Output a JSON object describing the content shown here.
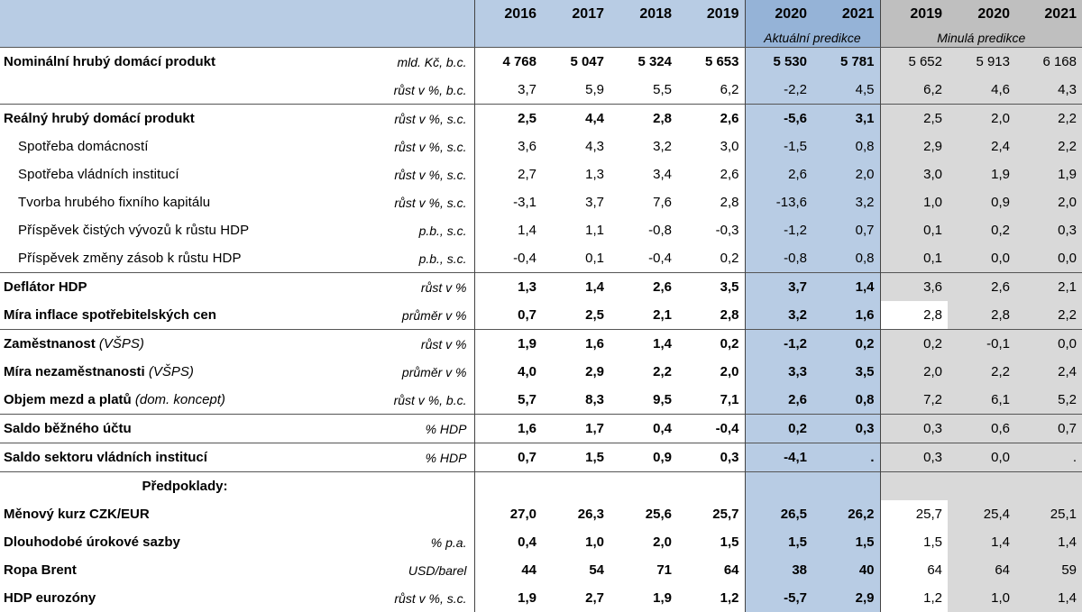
{
  "header": {
    "years": [
      "2016",
      "2017",
      "2018",
      "2019",
      "2020",
      "2021",
      "2019",
      "2020",
      "2021"
    ],
    "current_label": "Aktuální predikce",
    "previous_label": "Minulá predikce"
  },
  "rows": [
    {
      "label": "Nominální hrubý domácí produkt",
      "unit": "mld. Kč, b.c.",
      "v": [
        "4 768",
        "5 047",
        "5 324",
        "5 653",
        "5 530",
        "5 781",
        "5 652",
        "5 913",
        "6 168"
      ]
    },
    {
      "label": "",
      "unit": "růst v %, b.c.",
      "v": [
        "3,7",
        "5,9",
        "5,5",
        "6,2",
        "-2,2",
        "4,5",
        "6,2",
        "4,6",
        "4,3"
      ]
    },
    {
      "label": "Reálný hrubý domácí produkt",
      "unit": "růst v %, s.c.",
      "v": [
        "2,5",
        "4,4",
        "2,8",
        "2,6",
        "-5,6",
        "3,1",
        "2,5",
        "2,0",
        "2,2"
      ]
    },
    {
      "label": "Spotřeba domácností",
      "unit": "růst v %, s.c.",
      "v": [
        "3,6",
        "4,3",
        "3,2",
        "3,0",
        "-1,5",
        "0,8",
        "2,9",
        "2,4",
        "2,2"
      ]
    },
    {
      "label": "Spotřeba vládních institucí",
      "unit": "růst v %, s.c.",
      "v": [
        "2,7",
        "1,3",
        "3,4",
        "2,6",
        "2,6",
        "2,0",
        "3,0",
        "1,9",
        "1,9"
      ]
    },
    {
      "label": "Tvorba hrubého fixního kapitálu",
      "unit": "růst v %, s.c.",
      "v": [
        "-3,1",
        "3,7",
        "7,6",
        "2,8",
        "-13,6",
        "3,2",
        "1,0",
        "0,9",
        "2,0"
      ]
    },
    {
      "label": "Příspěvek čistých vývozů k růstu HDP",
      "unit": "p.b., s.c.",
      "v": [
        "1,4",
        "1,1",
        "-0,8",
        "-0,3",
        "-1,2",
        "0,7",
        "0,1",
        "0,2",
        "0,3"
      ]
    },
    {
      "label": "Příspěvek změny zásob k růstu HDP",
      "unit": "p.b., s.c.",
      "v": [
        "-0,4",
        "0,1",
        "-0,4",
        "0,2",
        "-0,8",
        "0,8",
        "0,1",
        "0,0",
        "0,0"
      ]
    },
    {
      "label": "Deflátor HDP",
      "unit": "růst v %",
      "v": [
        "1,3",
        "1,4",
        "2,6",
        "3,5",
        "3,7",
        "1,4",
        "3,6",
        "2,6",
        "2,1"
      ]
    },
    {
      "label": "Míra inflace spotřebitelských cen",
      "unit": "průměr v %",
      "v": [
        "0,7",
        "2,5",
        "2,1",
        "2,8",
        "3,2",
        "1,6",
        "2,8",
        "2,8",
        "2,2"
      ]
    },
    {
      "label": "Zaměstnanost",
      "note": "(VŠPS)",
      "unit": "růst v %",
      "v": [
        "1,9",
        "1,6",
        "1,4",
        "0,2",
        "-1,2",
        "0,2",
        "0,2",
        "-0,1",
        "0,0"
      ]
    },
    {
      "label": "Míra nezaměstnanosti",
      "note": "(VŠPS)",
      "unit": "průměr v %",
      "v": [
        "4,0",
        "2,9",
        "2,2",
        "2,0",
        "3,3",
        "3,5",
        "2,0",
        "2,2",
        "2,4"
      ]
    },
    {
      "label": "Objem mezd a platů",
      "note": "(dom. koncept)",
      "unit": "růst v %, b.c.",
      "v": [
        "5,7",
        "8,3",
        "9,5",
        "7,1",
        "2,6",
        "0,8",
        "7,2",
        "6,1",
        "5,2"
      ]
    },
    {
      "label": "Saldo běžného účtu",
      "unit": "% HDP",
      "v": [
        "1,6",
        "1,7",
        "0,4",
        "-0,4",
        "0,2",
        "0,3",
        "0,3",
        "0,6",
        "0,7"
      ]
    },
    {
      "label": "Saldo sektoru vládních institucí",
      "unit": "% HDP",
      "v": [
        "0,7",
        "1,5",
        "0,9",
        "0,3",
        "-4,1",
        ".",
        "0,3",
        "0,0",
        "."
      ]
    },
    {
      "label": "Předpoklady:"
    },
    {
      "label": "Měnový kurz CZK/EUR",
      "unit": "",
      "v": [
        "27,0",
        "26,3",
        "25,6",
        "25,7",
        "26,5",
        "26,2",
        "25,7",
        "25,4",
        "25,1"
      ]
    },
    {
      "label": "Dlouhodobé úrokové sazby",
      "unit": "% p.a.",
      "v": [
        "0,4",
        "1,0",
        "2,0",
        "1,5",
        "1,5",
        "1,5",
        "1,5",
        "1,4",
        "1,4"
      ]
    },
    {
      "label": "Ropa Brent",
      "unit": "USD/barel",
      "v": [
        "44",
        "54",
        "71",
        "64",
        "38",
        "40",
        "64",
        "64",
        "59"
      ]
    },
    {
      "label": "HDP eurozóny",
      "unit": "růst v %, s.c.",
      "v": [
        "1,9",
        "2,7",
        "1,9",
        "1,2",
        "-5,7",
        "2,9",
        "1,2",
        "1,0",
        "1,4"
      ]
    }
  ]
}
